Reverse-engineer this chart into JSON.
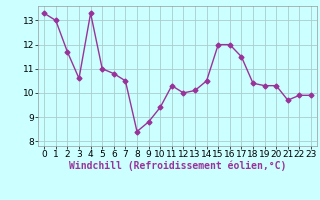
{
  "x": [
    0,
    1,
    2,
    3,
    4,
    5,
    6,
    7,
    8,
    9,
    10,
    11,
    12,
    13,
    14,
    15,
    16,
    17,
    18,
    19,
    20,
    21,
    22,
    23
  ],
  "y": [
    13.3,
    13.0,
    11.7,
    10.6,
    13.3,
    11.0,
    10.8,
    10.5,
    8.4,
    8.8,
    9.4,
    10.3,
    10.0,
    10.1,
    10.5,
    12.0,
    12.0,
    11.5,
    10.4,
    10.3,
    10.3,
    9.7,
    9.9,
    9.9
  ],
  "line_color": "#993399",
  "marker": "D",
  "markersize": 2.5,
  "linewidth": 1.0,
  "xlabel": "Windchill (Refroidissement éolien,°C)",
  "xlim": [
    -0.5,
    23.5
  ],
  "ylim": [
    7.8,
    13.6
  ],
  "yticks": [
    8,
    9,
    10,
    11,
    12,
    13
  ],
  "xticks": [
    0,
    1,
    2,
    3,
    4,
    5,
    6,
    7,
    8,
    9,
    10,
    11,
    12,
    13,
    14,
    15,
    16,
    17,
    18,
    19,
    20,
    21,
    22,
    23
  ],
  "bg_color": "#ccffff",
  "grid_color": "#aacccc",
  "xlabel_fontsize": 7,
  "tick_fontsize": 6.5,
  "xlabel_color": "#993399"
}
